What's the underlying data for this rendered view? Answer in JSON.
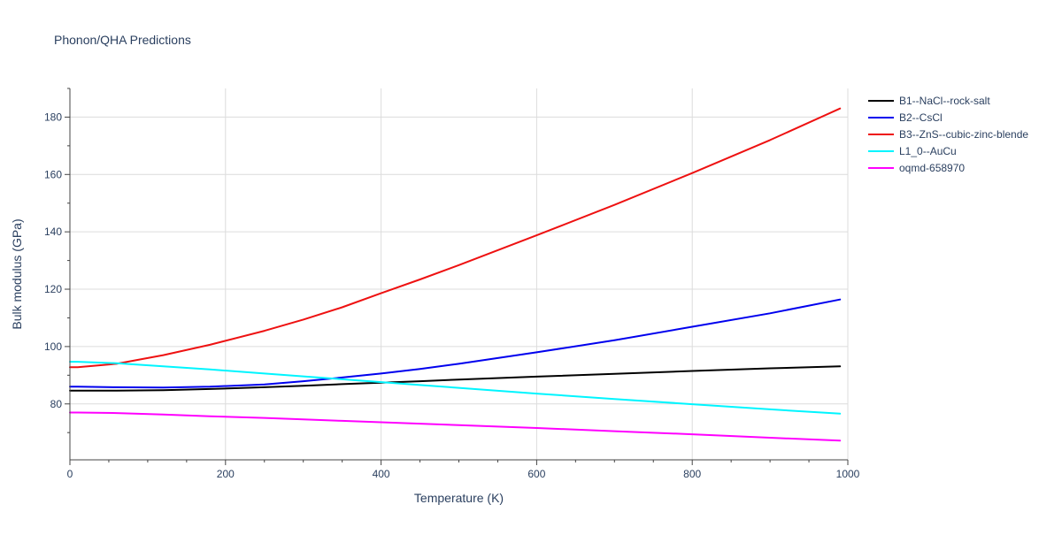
{
  "chart_data": {
    "type": "line",
    "title": "Phonon/QHA Predictions",
    "xlabel": "Temperature (K)",
    "ylabel": "Bulk modulus (GPa)",
    "xlim": [
      0,
      1000
    ],
    "ylim": [
      60.5,
      190
    ],
    "x_ticks": [
      0,
      200,
      400,
      600,
      800,
      1000
    ],
    "y_ticks": [
      80,
      100,
      120,
      140,
      160,
      180
    ],
    "grid": true,
    "legend_position": "right",
    "x": [
      0,
      10,
      60,
      120,
      180,
      250,
      300,
      350,
      400,
      450,
      500,
      600,
      700,
      800,
      900,
      990
    ],
    "series": [
      {
        "name": "B1--NaCl--rock-salt",
        "color": "#000000",
        "values": [
          84.6,
          84.6,
          84.6,
          84.8,
          85.2,
          85.8,
          86.3,
          86.9,
          87.4,
          87.9,
          88.5,
          89.5,
          90.5,
          91.5,
          92.4,
          93.1
        ]
      },
      {
        "name": "B2--CsCl",
        "color": "#0000ee",
        "values": [
          86.0,
          86.0,
          85.8,
          85.7,
          86.0,
          86.8,
          87.9,
          89.2,
          90.6,
          92.2,
          94.0,
          98.0,
          102.2,
          106.9,
          111.6,
          116.4
        ]
      },
      {
        "name": "B3--ZnS--cubic-zinc-blende",
        "color": "#ee1111",
        "values": [
          92.8,
          92.8,
          94.0,
          97.0,
          100.6,
          105.5,
          109.4,
          113.7,
          118.6,
          123.4,
          128.4,
          138.8,
          149.4,
          160.5,
          172.0,
          183.0
        ]
      },
      {
        "name": "L1_0--AuCu",
        "color": "#00f5ff",
        "values": [
          94.7,
          94.7,
          94.2,
          93.1,
          92.0,
          90.6,
          89.6,
          88.6,
          87.6,
          86.6,
          85.6,
          83.6,
          81.7,
          79.9,
          78.1,
          76.6
        ]
      },
      {
        "name": "oqmd-658970",
        "color": "#ff00ff",
        "values": [
          77.0,
          77.0,
          76.8,
          76.3,
          75.7,
          75.1,
          74.6,
          74.1,
          73.6,
          73.1,
          72.6,
          71.6,
          70.5,
          69.4,
          68.2,
          67.2
        ]
      }
    ]
  }
}
